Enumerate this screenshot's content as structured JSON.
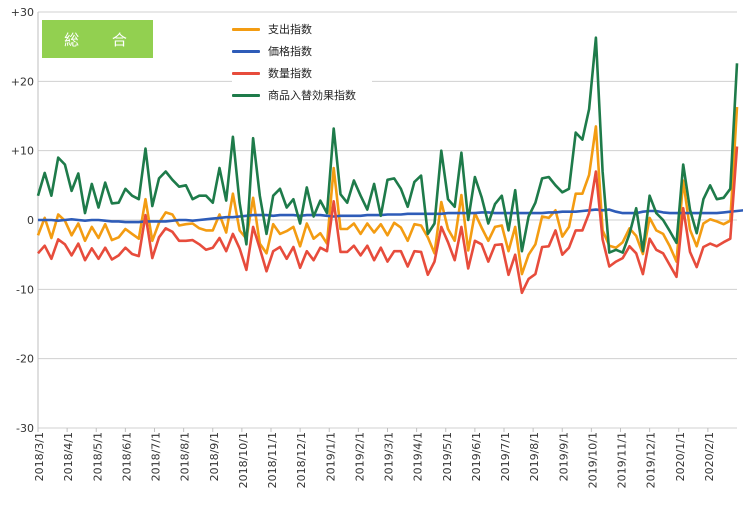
{
  "chart_data": {
    "type": "line",
    "title": "総 合",
    "ylim": [
      -30,
      30
    ],
    "yticks": [
      30,
      20,
      10,
      0,
      -10,
      -20,
      -30
    ],
    "ytick_labels": [
      "+30",
      "+20",
      "+10",
      "0",
      "-10",
      "-20",
      "-30"
    ],
    "month_labels": [
      "2018/3/1",
      "2018/4/1",
      "2018/5/1",
      "2018/6/1",
      "2018/7/1",
      "2018/8/1",
      "2018/9/1",
      "2018/10/1",
      "2018/11/1",
      "2018/12/1",
      "2019/1/1",
      "2019/2/1",
      "2019/3/1",
      "2019/4/1",
      "2019/5/1",
      "2019/6/1",
      "2019/7/1",
      "2019/8/1",
      "2019/9/1",
      "2019/10/1",
      "2019/11/1",
      "2019/12/1",
      "2020/1/1",
      "2020/2/1"
    ],
    "grid": true,
    "legend_position": "top-center",
    "series": [
      {
        "name": "支出指数",
        "color": "#f39c12",
        "values": [
          -2.2,
          0.3,
          -2.6,
          0.8,
          -0.1,
          -2.2,
          -0.5,
          -3.0,
          -1.0,
          -2.6,
          -0.6,
          -2.9,
          -2.5,
          -1.3,
          -2.0,
          -2.7,
          3.0,
          -3.0,
          -0.4,
          1.1,
          0.8,
          -0.8,
          -0.6,
          -0.5,
          -1.2,
          -1.5,
          -1.5,
          0.8,
          -1.8,
          3.8,
          -1.5,
          -2.7,
          3.2,
          -3.4,
          -4.8,
          -0.6,
          -2.0,
          -1.6,
          -1.0,
          -3.8,
          -0.5,
          -2.7,
          -1.9,
          -3.4,
          7.5,
          -1.3,
          -1.3,
          -0.5,
          -2.0,
          -0.5,
          -1.8,
          -0.6,
          -2.2,
          -0.4,
          -1.1,
          -3.0,
          -0.6,
          -0.8,
          -2.5,
          -4.8,
          2.6,
          -1.3,
          -3.0,
          3.6,
          -4.4,
          1.0,
          -1.1,
          -3.0,
          -1.0,
          -0.8,
          -4.5,
          -1.0,
          -7.8,
          -5.0,
          -3.5,
          0.5,
          0.3,
          1.4,
          -2.4,
          -1.0,
          3.8,
          3.8,
          6.5,
          13.5,
          -1.5,
          -3.7,
          -4.0,
          -3.2,
          -1.2,
          -2.3,
          -4.9,
          0.3,
          -1.5,
          -2.0,
          -3.8,
          -6.0,
          5.7,
          -1.4,
          -3.8,
          -0.5,
          0.1,
          -0.2,
          -0.6,
          -0.1,
          16.3
        ]
      },
      {
        "name": "価格指数",
        "color": "#2e5cb8",
        "values": [
          0.0,
          0.0,
          0.0,
          -0.1,
          0.0,
          0.1,
          0.0,
          -0.1,
          0.0,
          0.0,
          -0.1,
          -0.2,
          -0.2,
          -0.3,
          -0.3,
          -0.3,
          -0.2,
          -0.2,
          -0.2,
          -0.2,
          -0.1,
          0.0,
          0.0,
          -0.1,
          0.0,
          0.1,
          0.2,
          0.3,
          0.4,
          0.4,
          0.5,
          0.6,
          0.7,
          0.7,
          0.7,
          0.6,
          0.7,
          0.7,
          0.7,
          0.6,
          0.7,
          0.7,
          0.7,
          0.6,
          0.5,
          0.6,
          0.6,
          0.6,
          0.6,
          0.7,
          0.7,
          0.7,
          0.8,
          0.8,
          0.8,
          0.9,
          0.9,
          0.9,
          0.9,
          0.9,
          0.9,
          1.0,
          1.0,
          1.0,
          1.0,
          1.0,
          1.1,
          1.1,
          1.0,
          1.0,
          1.0,
          1.0,
          1.0,
          1.0,
          1.0,
          1.0,
          1.1,
          1.1,
          1.2,
          1.2,
          1.2,
          1.3,
          1.4,
          1.5,
          1.4,
          1.5,
          1.2,
          1.0,
          1.0,
          1.0,
          1.2,
          1.3,
          1.3,
          1.1,
          1.0,
          1.0,
          1.0,
          1.0,
          1.0,
          1.0,
          1.0,
          1.0,
          1.1,
          1.2,
          1.3,
          1.4
        ]
      },
      {
        "name": "数量指数",
        "color": "#e74c3c",
        "values": [
          -4.8,
          -3.7,
          -5.6,
          -2.8,
          -3.5,
          -5.1,
          -3.4,
          -5.8,
          -4.1,
          -5.6,
          -4.0,
          -5.7,
          -5.1,
          -4.0,
          -4.9,
          -5.2,
          0.7,
          -5.5,
          -2.5,
          -1.2,
          -1.7,
          -3.0,
          -3.0,
          -2.9,
          -3.5,
          -4.3,
          -4.0,
          -2.6,
          -4.5,
          -2.0,
          -4.1,
          -7.2,
          -1.0,
          -4.1,
          -7.4,
          -4.5,
          -3.9,
          -5.6,
          -3.9,
          -6.9,
          -4.5,
          -5.8,
          -4.0,
          -4.5,
          2.7,
          -4.6,
          -4.6,
          -3.7,
          -5.1,
          -3.7,
          -5.8,
          -4.0,
          -6.0,
          -4.5,
          -4.5,
          -6.7,
          -4.5,
          -4.6,
          -7.9,
          -6.0,
          -1.0,
          -3.2,
          -5.8,
          -1.0,
          -7.0,
          -3.0,
          -3.5,
          -6.0,
          -3.6,
          -3.5,
          -7.9,
          -5.0,
          -10.5,
          -8.5,
          -7.8,
          -3.9,
          -3.8,
          -1.5,
          -5.0,
          -4.0,
          -1.5,
          -1.5,
          1.0,
          7.0,
          -2.8,
          -6.7,
          -6.0,
          -5.5,
          -3.8,
          -4.8,
          -7.8,
          -2.7,
          -4.3,
          -4.8,
          -6.5,
          -8.2,
          1.7,
          -4.6,
          -6.8,
          -3.9,
          -3.4,
          -3.8,
          -3.2,
          -2.7,
          10.6
        ]
      },
      {
        "name": "商品入替効果指数",
        "color": "#1e7b4a",
        "values": [
          3.5,
          6.8,
          3.5,
          9.0,
          8.0,
          4.2,
          6.7,
          1.0,
          5.2,
          1.8,
          5.4,
          2.4,
          2.5,
          4.5,
          3.5,
          3.0,
          10.3,
          2.0,
          6.0,
          7.0,
          5.8,
          4.8,
          5.0,
          3.0,
          3.5,
          3.5,
          2.5,
          7.5,
          2.8,
          12.0,
          2.5,
          -3.5,
          11.8,
          3.5,
          -2.0,
          3.5,
          4.5,
          1.8,
          3.0,
          -0.5,
          4.7,
          0.5,
          2.8,
          1.0,
          13.2,
          3.7,
          2.5,
          5.7,
          3.5,
          1.5,
          5.2,
          0.6,
          5.8,
          6.0,
          4.5,
          1.9,
          5.5,
          6.4,
          -2.0,
          -0.5,
          10.0,
          3.0,
          1.9,
          9.7,
          0.0,
          6.2,
          3.3,
          -0.5,
          2.3,
          3.5,
          -1.5,
          4.3,
          -4.5,
          0.5,
          2.5,
          6.0,
          6.2,
          5.0,
          4.0,
          4.5,
          12.6,
          11.6,
          16.0,
          26.3,
          7.0,
          -4.7,
          -4.3,
          -4.7,
          -2.0,
          1.7,
          -4.5,
          3.5,
          1.0,
          0.0,
          -1.6,
          -3.3,
          8.0,
          1.5,
          -1.9,
          3.0,
          5.0,
          3.0,
          3.2,
          4.5,
          22.6
        ]
      }
    ]
  }
}
